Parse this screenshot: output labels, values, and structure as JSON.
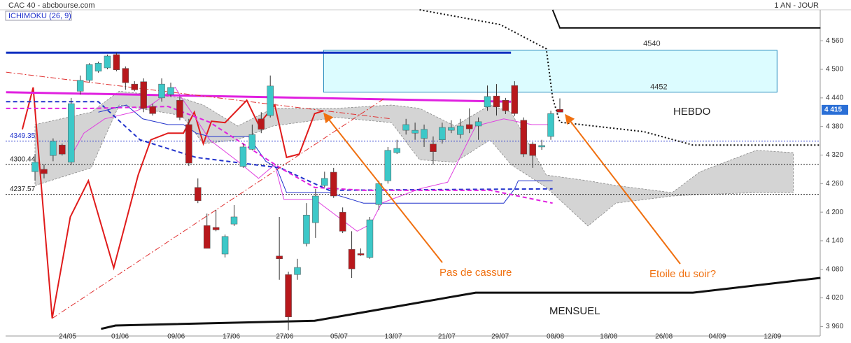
{
  "chart_data": {
    "type": "candlestick",
    "title": "CAC 40 - abcbourse.com",
    "period": "1 AN - JOUR",
    "indicator": "ICHIMOKU (26, 9)",
    "up_color": "#3cc8c8",
    "down_color": "#b8181c",
    "xlim": [
      -3.25,
      86.77
    ],
    "ylim": [
      3940,
      4625
    ],
    "xticks": [
      {
        "value": 3.6,
        "label": "24/05"
      },
      {
        "value": 9.4,
        "label": "01/06"
      },
      {
        "value": 15.6,
        "label": "09/06"
      },
      {
        "value": 21.7,
        "label": "17/06"
      },
      {
        "value": 27.6,
        "label": "27/06"
      },
      {
        "value": 33.6,
        "label": "05/07"
      },
      {
        "value": 39.6,
        "label": "13/07"
      },
      {
        "value": 45.5,
        "label": "21/07"
      },
      {
        "value": 51.4,
        "label": "29/07"
      },
      {
        "value": 57.5,
        "label": "08/08"
      },
      {
        "value": 63.4,
        "label": "18/08"
      },
      {
        "value": 69.5,
        "label": "26/08"
      },
      {
        "value": 75.4,
        "label": "04/09"
      },
      {
        "value": 81.5,
        "label": "12/09"
      }
    ],
    "yticks": [
      {
        "value": 3960,
        "label": "3 960"
      },
      {
        "value": 4020,
        "label": "4 020"
      },
      {
        "value": 4080,
        "label": "4 080"
      },
      {
        "value": 4140,
        "label": "4 140"
      },
      {
        "value": 4200,
        "label": "4 200"
      },
      {
        "value": 4260,
        "label": "4 260"
      },
      {
        "value": 4320,
        "label": "4 320"
      },
      {
        "value": 4380,
        "label": "4 380"
      },
      {
        "value": 4440,
        "label": "4 440"
      },
      {
        "value": 4500,
        "label": "4 500"
      },
      {
        "value": 4560,
        "label": "4 560"
      }
    ],
    "open": [
      4285,
      4290,
      4319,
      4341,
      4305,
      4454,
      4477,
      4496,
      4503,
      4531,
      4502,
      4469,
      4474,
      4422,
      4440,
      4447,
      4435,
      4384,
      4252,
      4172,
      4168,
      4112,
      4175,
      4296,
      4332,
      4396,
      4403,
      4108,
      4069,
      4069,
      4134,
      4178,
      4256,
      4284,
      4200,
      4122,
      4113,
      4105,
      4216,
      4266,
      4325,
      4372,
      4366,
      4355,
      4343,
      4352,
      4372,
      4363,
      4384,
      4381,
      4421,
      4444,
      4435,
      4466,
      4393,
      4343,
      4337,
      4359,
      4416
    ],
    "high": [
      4322,
      4300,
      4355,
      4344,
      4440,
      4487,
      4513,
      4516,
      4531,
      4535,
      4506,
      4475,
      4481,
      4428,
      4481,
      4472,
      4443,
      4396,
      4271,
      4197,
      4205,
      4153,
      4215,
      4344,
      4384,
      4410,
      4487,
      4190,
      4075,
      4102,
      4219,
      4249,
      4285,
      4293,
      4210,
      4160,
      4124,
      4190,
      4266,
      4337,
      4352,
      4396,
      4388,
      4384,
      4359,
      4388,
      4393,
      4396,
      4418,
      4399,
      4466,
      4469,
      4440,
      4475,
      4399,
      4347,
      4352,
      4413,
      4439
    ],
    "low": [
      4266,
      4271,
      4307,
      4319,
      4299,
      4447,
      4472,
      4493,
      4500,
      4496,
      4457,
      4454,
      4410,
      4403,
      4432,
      4443,
      4393,
      4297,
      4219,
      4124,
      4160,
      4105,
      4171,
      4293,
      4330,
      4366,
      4399,
      4058,
      3952,
      4058,
      4128,
      4146,
      4252,
      4230,
      4156,
      4062,
      4108,
      4102,
      4205,
      4260,
      4322,
      4363,
      4352,
      4337,
      4300,
      4344,
      4366,
      4355,
      4366,
      4352,
      4413,
      4403,
      4406,
      4402,
      4316,
      4293,
      4331,
      4352,
      4410
    ],
    "close": [
      4305,
      4281,
      4349,
      4322,
      4428,
      4477,
      4510,
      4513,
      4528,
      4499,
      4472,
      4457,
      4418,
      4407,
      4469,
      4462,
      4399,
      4303,
      4224,
      4124,
      4163,
      4149,
      4190,
      4337,
      4363,
      4374,
      4465,
      4102,
      3980,
      4084,
      4194,
      4234,
      4271,
      4234,
      4160,
      4081,
      4110,
      4184,
      4260,
      4330,
      4334,
      4384,
      4372,
      4374,
      4327,
      4378,
      4378,
      4381,
      4375,
      4390,
      4443,
      4421,
      4413,
      4407,
      4322,
      4319,
      4340,
      4407,
      4410
    ],
    "cloud": {
      "color": "#d4d4d4",
      "x": [
        0,
        6.2,
        9.3,
        16.2,
        18.6,
        22.4,
        26.3,
        33.3,
        39.4,
        42.5,
        46.4,
        50.3,
        52.6,
        56.5,
        61.1,
        64.2,
        70.4,
        73.5,
        79.7,
        83.8
      ],
      "top": [
        4384,
        4410,
        4454,
        4440,
        4425,
        4381,
        4418,
        4418,
        4425,
        4418,
        4381,
        4425,
        4410,
        4278,
        4266,
        4256,
        4241,
        4285,
        4330,
        4325
      ],
      "bottom": [
        4256,
        4293,
        4425,
        4403,
        4344,
        4352,
        4381,
        4399,
        4388,
        4310,
        4305,
        4352,
        4300,
        4252,
        4171,
        4219,
        4234,
        4237,
        4241,
        4241
      ]
    },
    "zone": {
      "x": [
        31.9,
        82
      ],
      "top": 4540,
      "bottom": 4452,
      "color": "#dcfcff",
      "border": "#2a8fc0"
    },
    "levels": [
      {
        "value": 4349.35,
        "color": "#2233cc"
      },
      {
        "value": 4300.44,
        "color": "#222222"
      },
      {
        "value": 4237.57,
        "color": "#222222"
      }
    ],
    "last": {
      "value": 4415,
      "label": "4 415",
      "color": "#2a6fd6"
    },
    "lines": [
      {
        "color": "#e01b1b",
        "width": 2,
        "dash": "solid",
        "x": [
          -1.4,
          -0.2,
          1.9,
          3.9,
          5.9,
          8.7,
          11.4,
          12.8,
          14.7,
          16.4,
          17.6,
          18.6,
          19.5,
          21.0,
          23.4,
          24.7,
          26.5,
          27.8,
          29.2,
          30.9,
          31.9
        ],
        "values": [
          4374,
          4462,
          3977,
          4190,
          4266,
          4083,
          4278,
          4352,
          4366,
          4366,
          4410,
          4344,
          4391,
          4388,
          4435,
          4384,
          4425,
          4315,
          4322,
          4407,
          4413
        ]
      },
      {
        "color": "#2233cc",
        "width": 1,
        "dash": "solid",
        "x": [
          7.0,
          10.1,
          11.9,
          14.7,
          16.4,
          17.8,
          19.3,
          23.6,
          25.5,
          26.7,
          27.8,
          32.5,
          36.3,
          51.8,
          53.0,
          53.4,
          57.2
        ],
        "values": [
          4410,
          4425,
          4396,
          4384,
          4384,
          4366,
          4359,
          4359,
          4307,
          4293,
          4241,
          4241,
          4219,
          4219,
          4249,
          4266,
          4266
        ]
      },
      {
        "color": "#e040e0",
        "width": 1,
        "dash": "solid",
        "x": [
          3.9,
          5.4,
          7.7,
          10.8,
          12.8,
          15.5,
          16.2,
          17.8,
          19.3,
          22.4,
          24.7,
          26.5,
          27.5,
          30.9,
          35.6,
          37.1,
          38.3,
          42.5,
          45.6,
          48.7,
          51.8,
          54.9,
          57.2
        ],
        "values": [
          4315,
          4366,
          4396,
          4410,
          4425,
          4462,
          4440,
          4396,
          4352,
          4307,
          4271,
          4300,
          4227,
          4227,
          4160,
          4175,
          4219,
          4249,
          4263,
          4381,
          4396,
          4384,
          4384
        ]
      },
      {
        "color": "#2233cc",
        "width": 2,
        "dash": "dashed",
        "x": [
          -3.2,
          7.0,
          11.6,
          17.8,
          27.1,
          32.5,
          57.2
        ],
        "values": [
          4432,
          4432,
          4352,
          4315,
          4293,
          4246,
          4249
        ]
      },
      {
        "color": "#e020e0",
        "width": 2,
        "dash": "dashed",
        "x": [
          -3.2,
          6.2,
          14.7,
          19.3,
          27.1,
          30.9,
          36.3,
          50.3,
          57.2
        ],
        "values": [
          4418,
          4418,
          4422,
          4389,
          4293,
          4252,
          4246,
          4246,
          4219
        ]
      },
      {
        "color": "#1030c0",
        "width": 3,
        "dash": "solid",
        "x": [
          -3.2,
          52.6
        ],
        "values": [
          4535,
          4535
        ]
      },
      {
        "color": "#e020e0",
        "width": 3,
        "dash": "solid",
        "x": [
          -3.2,
          52.6
        ],
        "values": [
          4452,
          4432
        ]
      },
      {
        "color": "#e03030",
        "width": 1,
        "dash": "dashdot",
        "x": [
          -3.2,
          39.4
        ],
        "values": [
          4494,
          4396
        ]
      },
      {
        "color": "#e03030",
        "width": 1,
        "dash": "dashdot",
        "x": [
          1.9,
          38.7
        ],
        "values": [
          3977,
          4440
        ]
      },
      {
        "color": "#111111",
        "width": 2,
        "dash": "dotted",
        "x": [
          42.5,
          51.4,
          56.5,
          57.2,
          58.0,
          67.3,
          72.7,
          86.8
        ],
        "values": [
          4625,
          4594,
          4543,
          4440,
          4389,
          4369,
          4341,
          4341
        ]
      },
      {
        "color": "#111111",
        "width": 3,
        "dash": "solid",
        "x": [
          7.3,
          8.9,
          30.9,
          48.7,
          72.7,
          86.8
        ],
        "values": [
          3955,
          3962,
          3972,
          4031,
          4031,
          4062
        ]
      },
      {
        "color": "#111111",
        "width": 2,
        "dash": "solid",
        "x": [
          57.2,
          58.0,
          86.8
        ],
        "values": [
          4625,
          4587,
          4587
        ]
      }
    ],
    "annotations": [
      "HEBDO",
      "MENSUEL",
      "Pas de cassure",
      "Etoile du soir?"
    ]
  }
}
